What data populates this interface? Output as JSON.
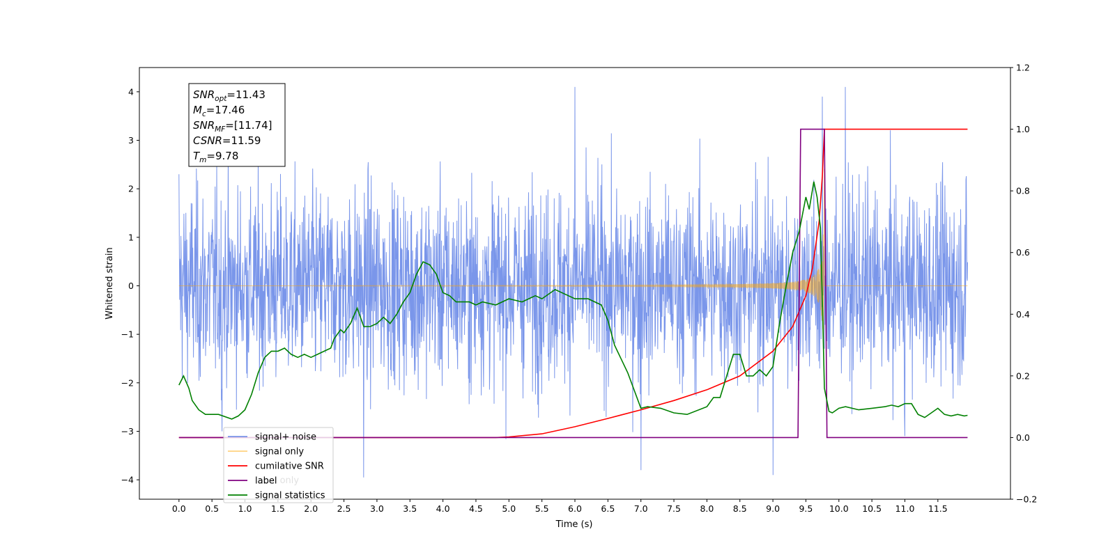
{
  "chart_data": {
    "type": "line",
    "xlabel": "Time (s)",
    "ylabel": "Whitened strain",
    "xlim": [
      -0.6,
      12.6
    ],
    "ylim_left": [
      -4.4,
      4.5
    ],
    "ylim_right": [
      -0.2,
      1.2
    ],
    "x_ticks": [
      0.0,
      0.5,
      1.0,
      1.5,
      2.0,
      2.5,
      3.0,
      3.5,
      4.0,
      4.5,
      5.0,
      5.5,
      6.0,
      6.5,
      7.0,
      7.5,
      8.0,
      8.5,
      9.0,
      9.5,
      10.0,
      10.5,
      11.0,
      11.5
    ],
    "x_tick_labels": [
      "0.0",
      "0.5",
      "1.0",
      "1.5",
      "2.0",
      "2.5",
      "3.0",
      "3.5",
      "4.0",
      "4.5",
      "5.0",
      "5.5",
      "6.0",
      "6.5",
      "7.0",
      "7.5",
      "8.0",
      "8.5",
      "9.0",
      "9.5",
      "10.0",
      "10.5",
      "11.0",
      "11.5"
    ],
    "y_left_ticks": [
      -4,
      -3,
      -2,
      -1,
      0,
      1,
      2,
      3,
      4
    ],
    "y_left_tick_labels": [
      "−4",
      "−3",
      "−2",
      "−1",
      "0",
      "1",
      "2",
      "3",
      "4"
    ],
    "y_right_ticks": [
      -0.2,
      0.0,
      0.2,
      0.4,
      0.6,
      0.8,
      1.0,
      1.2
    ],
    "y_right_tick_labels": [
      "−0.2",
      "0.0",
      "0.2",
      "0.4",
      "0.6",
      "0.8",
      "1.0",
      "1.2"
    ],
    "grid": false,
    "legend_position": "lower-left",
    "annotation_box": {
      "lines": [
        {
          "base": "SNR",
          "sub": "opt",
          "value": "=11.43"
        },
        {
          "base": "M",
          "sub": "c",
          "value": "=17.46"
        },
        {
          "base": "SNR",
          "sub": "MF",
          "value": "=[11.74]"
        },
        {
          "base": "CSNR",
          "sub": "",
          "value": "=11.59"
        },
        {
          "base": "T",
          "sub": "m",
          "value": "=9.78"
        }
      ]
    },
    "series": [
      {
        "name": "signal+ noise",
        "color": "#4169e1",
        "axis": "left",
        "description_range": [
          -4.0,
          4.1
        ],
        "peaks": [
          [
            0.0,
            2.3
          ],
          [
            0.65,
            -3.0
          ],
          [
            2.8,
            -3.95
          ],
          [
            6.0,
            4.1
          ],
          [
            7.0,
            -3.8
          ],
          [
            9.0,
            -3.9
          ],
          [
            9.75,
            3.9
          ],
          [
            10.1,
            4.1
          ],
          [
            11.0,
            -3.1
          ]
        ]
      },
      {
        "name": "signal only",
        "color": "#ffa500",
        "axis": "left",
        "chirp_end_time": 9.78,
        "peak_amplitude": 3.3
      },
      {
        "name": "cumilative SNR",
        "color": "#ff0000",
        "axis": "right",
        "x": [
          0.0,
          4.8,
          5.0,
          5.5,
          6.0,
          6.5,
          7.0,
          7.5,
          8.0,
          8.5,
          9.0,
          9.3,
          9.5,
          9.6,
          9.7,
          9.75,
          9.78,
          11.95
        ],
        "y": [
          0.0,
          0.0,
          0.002,
          0.012,
          0.035,
          0.062,
          0.09,
          0.12,
          0.155,
          0.2,
          0.28,
          0.36,
          0.46,
          0.55,
          0.7,
          0.85,
          1.0,
          1.0
        ]
      },
      {
        "name": "label",
        "color": "#800080",
        "axis": "right",
        "x": [
          0.0,
          9.38,
          9.42,
          9.78,
          9.82,
          11.95
        ],
        "y": [
          0.0,
          0.0,
          1.0,
          1.0,
          0.0,
          0.0
        ]
      },
      {
        "name": "signal statistics",
        "color": "#008000",
        "axis": "right",
        "x": [
          0.0,
          0.07,
          0.15,
          0.2,
          0.3,
          0.4,
          0.6,
          0.8,
          0.9,
          1.0,
          1.1,
          1.2,
          1.3,
          1.4,
          1.5,
          1.6,
          1.7,
          1.8,
          1.9,
          2.0,
          2.1,
          2.2,
          2.3,
          2.35,
          2.45,
          2.5,
          2.6,
          2.7,
          2.8,
          2.9,
          3.0,
          3.1,
          3.2,
          3.3,
          3.4,
          3.5,
          3.6,
          3.7,
          3.8,
          3.9,
          4.0,
          4.1,
          4.2,
          4.3,
          4.4,
          4.5,
          4.6,
          4.8,
          5.0,
          5.2,
          5.4,
          5.5,
          5.7,
          5.8,
          6.0,
          6.2,
          6.4,
          6.5,
          6.6,
          6.8,
          7.0,
          7.1,
          7.3,
          7.5,
          7.7,
          8.0,
          8.1,
          8.2,
          8.3,
          8.4,
          8.5,
          8.6,
          8.7,
          8.8,
          8.9,
          9.0,
          9.1,
          9.2,
          9.3,
          9.4,
          9.5,
          9.55,
          9.62,
          9.67,
          9.72,
          9.75,
          9.78,
          9.85,
          9.9,
          10.0,
          10.1,
          10.3,
          10.5,
          10.7,
          10.8,
          10.9,
          11.0,
          11.1,
          11.2,
          11.3,
          11.4,
          11.5,
          11.6,
          11.7,
          11.8,
          11.9,
          11.95
        ],
        "y": [
          0.17,
          0.2,
          0.16,
          0.12,
          0.09,
          0.075,
          0.075,
          0.06,
          0.07,
          0.09,
          0.14,
          0.21,
          0.26,
          0.28,
          0.28,
          0.29,
          0.27,
          0.26,
          0.27,
          0.26,
          0.27,
          0.28,
          0.29,
          0.32,
          0.35,
          0.34,
          0.37,
          0.42,
          0.36,
          0.36,
          0.37,
          0.39,
          0.37,
          0.4,
          0.44,
          0.47,
          0.53,
          0.57,
          0.56,
          0.53,
          0.47,
          0.46,
          0.44,
          0.44,
          0.44,
          0.43,
          0.44,
          0.43,
          0.45,
          0.44,
          0.46,
          0.45,
          0.48,
          0.47,
          0.45,
          0.45,
          0.43,
          0.38,
          0.3,
          0.21,
          0.095,
          0.1,
          0.095,
          0.08,
          0.075,
          0.1,
          0.13,
          0.13,
          0.2,
          0.27,
          0.27,
          0.2,
          0.2,
          0.22,
          0.2,
          0.23,
          0.37,
          0.49,
          0.6,
          0.67,
          0.78,
          0.74,
          0.83,
          0.78,
          0.68,
          0.44,
          0.16,
          0.085,
          0.08,
          0.095,
          0.1,
          0.09,
          0.095,
          0.1,
          0.105,
          0.1,
          0.11,
          0.11,
          0.075,
          0.065,
          0.08,
          0.095,
          0.075,
          0.07,
          0.075,
          0.07,
          0.072
        ]
      }
    ],
    "legend": [
      {
        "label": "signal+ noise",
        "color": "#4169e1",
        "alpha": 0.7
      },
      {
        "label": "signal only",
        "color": "#ffa500",
        "alpha": 0.5
      },
      {
        "label": "cumilative SNR",
        "color": "#ff0000",
        "alpha": 1
      },
      {
        "label": "label",
        "color": "#800080",
        "alpha": 1
      },
      {
        "label": "signal statistics",
        "color": "#008000",
        "alpha": 1
      }
    ],
    "legend_ghost_labels": [
      "label only",
      "signal statistics"
    ]
  }
}
